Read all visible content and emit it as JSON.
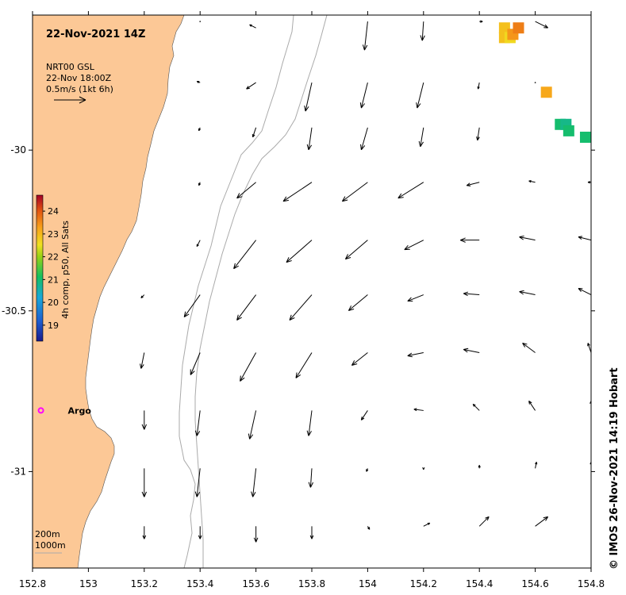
{
  "title": "22-Nov-2021 14Z",
  "vector_legend": {
    "product": "NRT00 GSL",
    "time": "22-Nov 18:00Z",
    "scale": "0.5m/s (1kt 6h)"
  },
  "colorbar": {
    "label": "4h comp, p50, All Sats",
    "ticks": [
      "24",
      "23",
      "22",
      "21",
      "20",
      "19"
    ],
    "range": [
      18.3,
      24.7
    ]
  },
  "argo_label": "Argo",
  "argo_position": {
    "lon": 152.83,
    "lat": -30.81
  },
  "isobaths": [
    "200m",
    "1000m"
  ],
  "credit": "© IMOS 26-Nov-2021 14:19 Hobart",
  "axes": {
    "x_ticks": [
      "152.8",
      "153",
      "153.2",
      "153.4",
      "153.6",
      "153.8",
      "154",
      "154.2",
      "154.4",
      "154.6",
      "154.8"
    ],
    "x_values": [
      152.8,
      153.0,
      153.2,
      153.4,
      153.6,
      153.8,
      154.0,
      154.2,
      154.4,
      154.6,
      154.8
    ],
    "y_ticks": [
      "-30",
      "-30.5",
      "-31"
    ],
    "y_values": [
      -30,
      -30.5,
      -31
    ],
    "lon_range": [
      152.8,
      154.8
    ],
    "lat_range": [
      -31.3,
      -29.58
    ]
  },
  "colors": {
    "land": "#fcc896",
    "isobath": "#aaaaaa",
    "argo": "#ff00ff",
    "sst_high": "#a50026",
    "sst_low": "#1a1a8c"
  },
  "sst_pixels": [
    {
      "lon": 154.49,
      "lat": -29.65,
      "temp": 22.9
    },
    {
      "lon": 154.49,
      "lat": -29.62,
      "temp": 22.9
    },
    {
      "lon": 154.51,
      "lat": -29.65,
      "temp": 22.6
    },
    {
      "lon": 154.52,
      "lat": -29.64,
      "temp": 23.4
    },
    {
      "lon": 154.54,
      "lat": -29.62,
      "temp": 23.6
    },
    {
      "lon": 154.64,
      "lat": -29.82,
      "temp": 23.2
    },
    {
      "lon": 154.69,
      "lat": -29.92,
      "temp": 21.0
    },
    {
      "lon": 154.71,
      "lat": -29.92,
      "temp": 20.8
    },
    {
      "lon": 154.72,
      "lat": -29.94,
      "temp": 21.0
    },
    {
      "lon": 154.78,
      "lat": -29.96,
      "temp": 21.0
    }
  ],
  "current_vectors": [
    {
      "lon": 153.4,
      "lat": -29.6,
      "u": 0.0,
      "v": 0.0
    },
    {
      "lon": 153.6,
      "lat": -29.62,
      "u": -0.1,
      "v": 0.05
    },
    {
      "lon": 154.0,
      "lat": -29.6,
      "u": -0.05,
      "v": -0.45
    },
    {
      "lon": 154.2,
      "lat": -29.6,
      "u": -0.02,
      "v": -0.3
    },
    {
      "lon": 154.4,
      "lat": -29.6,
      "u": 0.05,
      "v": 0.0
    },
    {
      "lon": 154.6,
      "lat": -29.6,
      "u": 0.2,
      "v": -0.1
    },
    {
      "lon": 153.4,
      "lat": -29.79,
      "u": -0.05,
      "v": 0.02
    },
    {
      "lon": 153.6,
      "lat": -29.79,
      "u": -0.15,
      "v": -0.1
    },
    {
      "lon": 153.8,
      "lat": -29.79,
      "u": -0.1,
      "v": -0.45
    },
    {
      "lon": 154.0,
      "lat": -29.79,
      "u": -0.1,
      "v": -0.4
    },
    {
      "lon": 154.2,
      "lat": -29.79,
      "u": -0.1,
      "v": -0.4
    },
    {
      "lon": 154.4,
      "lat": -29.79,
      "u": -0.02,
      "v": -0.1
    },
    {
      "lon": 154.6,
      "lat": -29.79,
      "u": 0.0,
      "v": 0.0
    },
    {
      "lon": 153.4,
      "lat": -29.93,
      "u": -0.02,
      "v": -0.05
    },
    {
      "lon": 153.6,
      "lat": -29.93,
      "u": -0.05,
      "v": -0.15
    },
    {
      "lon": 153.8,
      "lat": -29.93,
      "u": -0.05,
      "v": -0.35
    },
    {
      "lon": 154.0,
      "lat": -29.93,
      "u": -0.1,
      "v": -0.35
    },
    {
      "lon": 154.2,
      "lat": -29.93,
      "u": -0.05,
      "v": -0.3
    },
    {
      "lon": 154.4,
      "lat": -29.93,
      "u": -0.03,
      "v": -0.2
    },
    {
      "lon": 153.4,
      "lat": -30.1,
      "u": -0.02,
      "v": -0.05
    },
    {
      "lon": 153.6,
      "lat": -30.1,
      "u": -0.3,
      "v": -0.25
    },
    {
      "lon": 153.8,
      "lat": -30.1,
      "u": -0.45,
      "v": -0.3
    },
    {
      "lon": 154.0,
      "lat": -30.1,
      "u": -0.4,
      "v": -0.3
    },
    {
      "lon": 154.2,
      "lat": -30.1,
      "u": -0.4,
      "v": -0.25
    },
    {
      "lon": 154.4,
      "lat": -30.1,
      "u": -0.2,
      "v": -0.05
    },
    {
      "lon": 154.6,
      "lat": -30.1,
      "u": -0.1,
      "v": 0.02
    },
    {
      "lon": 154.8,
      "lat": -30.1,
      "u": -0.05,
      "v": 0.0
    },
    {
      "lon": 153.4,
      "lat": -30.28,
      "u": -0.05,
      "v": -0.1
    },
    {
      "lon": 153.6,
      "lat": -30.28,
      "u": -0.35,
      "v": -0.45
    },
    {
      "lon": 153.8,
      "lat": -30.28,
      "u": -0.4,
      "v": -0.35
    },
    {
      "lon": 154.0,
      "lat": -30.28,
      "u": -0.35,
      "v": -0.3
    },
    {
      "lon": 154.2,
      "lat": -30.28,
      "u": -0.3,
      "v": -0.15
    },
    {
      "lon": 154.4,
      "lat": -30.28,
      "u": -0.3,
      "v": 0.0
    },
    {
      "lon": 154.6,
      "lat": -30.28,
      "u": -0.25,
      "v": 0.05
    },
    {
      "lon": 154.8,
      "lat": -30.28,
      "u": -0.2,
      "v": 0.05
    },
    {
      "lon": 153.2,
      "lat": -30.45,
      "u": -0.05,
      "v": -0.05
    },
    {
      "lon": 153.4,
      "lat": -30.45,
      "u": -0.25,
      "v": -0.35
    },
    {
      "lon": 153.6,
      "lat": -30.45,
      "u": -0.3,
      "v": -0.4
    },
    {
      "lon": 153.8,
      "lat": -30.45,
      "u": -0.35,
      "v": -0.4
    },
    {
      "lon": 154.0,
      "lat": -30.45,
      "u": -0.3,
      "v": -0.25
    },
    {
      "lon": 154.2,
      "lat": -30.45,
      "u": -0.25,
      "v": -0.1
    },
    {
      "lon": 154.4,
      "lat": -30.45,
      "u": -0.25,
      "v": 0.02
    },
    {
      "lon": 154.6,
      "lat": -30.45,
      "u": -0.25,
      "v": 0.05
    },
    {
      "lon": 154.8,
      "lat": -30.45,
      "u": -0.2,
      "v": 0.1
    },
    {
      "lon": 153.2,
      "lat": -30.63,
      "u": -0.05,
      "v": -0.25
    },
    {
      "lon": 153.4,
      "lat": -30.63,
      "u": -0.15,
      "v": -0.35
    },
    {
      "lon": 153.6,
      "lat": -30.63,
      "u": -0.25,
      "v": -0.45
    },
    {
      "lon": 153.8,
      "lat": -30.63,
      "u": -0.25,
      "v": -0.4
    },
    {
      "lon": 154.0,
      "lat": -30.63,
      "u": -0.25,
      "v": -0.2
    },
    {
      "lon": 154.2,
      "lat": -30.63,
      "u": -0.25,
      "v": -0.05
    },
    {
      "lon": 154.4,
      "lat": -30.63,
      "u": -0.25,
      "v": 0.05
    },
    {
      "lon": 154.6,
      "lat": -30.63,
      "u": -0.2,
      "v": 0.15
    },
    {
      "lon": 154.8,
      "lat": -30.63,
      "u": -0.05,
      "v": 0.15
    },
    {
      "lon": 153.2,
      "lat": -30.81,
      "u": 0.0,
      "v": -0.3
    },
    {
      "lon": 153.4,
      "lat": -30.81,
      "u": -0.05,
      "v": -0.4
    },
    {
      "lon": 153.6,
      "lat": -30.81,
      "u": -0.1,
      "v": -0.45
    },
    {
      "lon": 153.8,
      "lat": -30.81,
      "u": -0.05,
      "v": -0.4
    },
    {
      "lon": 154.0,
      "lat": -30.81,
      "u": -0.1,
      "v": -0.15
    },
    {
      "lon": 154.2,
      "lat": -30.81,
      "u": -0.15,
      "v": 0.02
    },
    {
      "lon": 154.4,
      "lat": -30.81,
      "u": -0.1,
      "v": 0.1
    },
    {
      "lon": 154.6,
      "lat": -30.81,
      "u": -0.1,
      "v": 0.15
    },
    {
      "lon": 154.8,
      "lat": -30.81,
      "u": 0.0,
      "v": 0.15
    },
    {
      "lon": 153.2,
      "lat": -30.99,
      "u": 0.0,
      "v": -0.45
    },
    {
      "lon": 153.4,
      "lat": -30.99,
      "u": -0.05,
      "v": -0.45
    },
    {
      "lon": 153.6,
      "lat": -30.99,
      "u": -0.05,
      "v": -0.45
    },
    {
      "lon": 153.8,
      "lat": -30.99,
      "u": -0.02,
      "v": -0.3
    },
    {
      "lon": 154.0,
      "lat": -30.99,
      "u": -0.02,
      "v": -0.05
    },
    {
      "lon": 154.2,
      "lat": -30.99,
      "u": 0.0,
      "v": -0.02
    },
    {
      "lon": 154.4,
      "lat": -30.99,
      "u": 0.0,
      "v": 0.05
    },
    {
      "lon": 154.6,
      "lat": -30.99,
      "u": 0.02,
      "v": 0.1
    },
    {
      "lon": 154.8,
      "lat": -30.99,
      "u": 0.0,
      "v": 0.1
    },
    {
      "lon": 153.2,
      "lat": -31.17,
      "u": 0.0,
      "v": -0.2
    },
    {
      "lon": 153.4,
      "lat": -31.17,
      "u": 0.0,
      "v": -0.2
    },
    {
      "lon": 153.6,
      "lat": -31.17,
      "u": 0.0,
      "v": -0.25
    },
    {
      "lon": 153.8,
      "lat": -31.17,
      "u": 0.0,
      "v": -0.2
    },
    {
      "lon": 154.0,
      "lat": -31.17,
      "u": 0.03,
      "v": -0.05
    },
    {
      "lon": 154.2,
      "lat": -31.17,
      "u": 0.1,
      "v": 0.05
    },
    {
      "lon": 154.4,
      "lat": -31.17,
      "u": 0.15,
      "v": 0.15
    },
    {
      "lon": 154.6,
      "lat": -31.17,
      "u": 0.2,
      "v": 0.15
    }
  ]
}
